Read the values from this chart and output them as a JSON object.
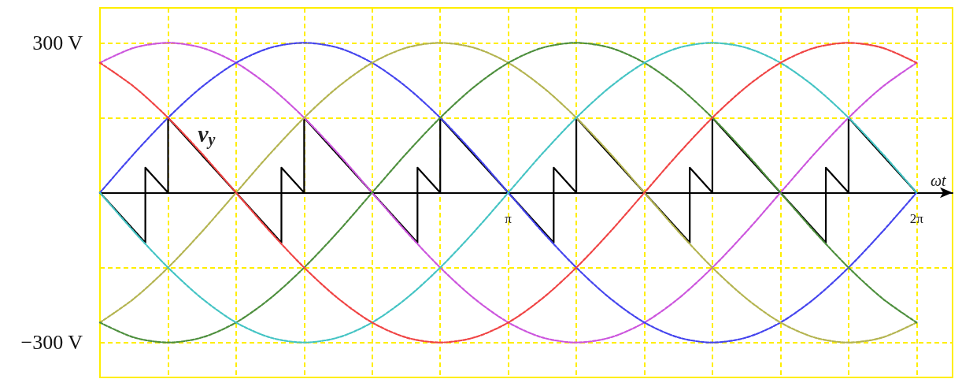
{
  "chart_data": {
    "type": "line",
    "xlabel": "ωt",
    "marker": "none",
    "grid": true,
    "xlim": [
      0,
      6.56
    ],
    "ylim": [
      -370,
      370
    ],
    "xticks": [
      {
        "value": 0,
        "label": null
      },
      {
        "value": 0.524,
        "label": null
      },
      {
        "value": 1.047,
        "label": null
      },
      {
        "value": 1.571,
        "label": null
      },
      {
        "value": 2.094,
        "label": null
      },
      {
        "value": 2.618,
        "label": null
      },
      {
        "value": 3.1416,
        "label": "π"
      },
      {
        "value": 3.665,
        "label": null
      },
      {
        "value": 4.189,
        "label": null
      },
      {
        "value": 4.712,
        "label": null
      },
      {
        "value": 5.236,
        "label": null
      },
      {
        "value": 5.76,
        "label": null
      },
      {
        "value": 6.2832,
        "label": "2π"
      }
    ],
    "yticks": [
      {
        "value": -300,
        "label": "−300 V"
      },
      {
        "value": -150,
        "label": null
      },
      {
        "value": 0,
        "label": null
      },
      {
        "value": 150,
        "label": null
      },
      {
        "value": 300,
        "label": "300 V"
      }
    ],
    "x": [
      0,
      0.262,
      0.524,
      0.785,
      1.047,
      1.309,
      1.571,
      1.833,
      2.094,
      2.356,
      2.618,
      2.88,
      3.142,
      3.403,
      3.665,
      3.927,
      4.189,
      4.451,
      4.712,
      4.974,
      5.236,
      5.498,
      5.76,
      6.021,
      6.283
    ],
    "annotations": [
      "v$_{y}$"
    ],
    "series": [
      {
        "color": "#cc55dd",
        "line_style": "dashed",
        "values": [
          260,
          290,
          300,
          290,
          260,
          212,
          150,
          78,
          0,
          -78,
          -150,
          -212,
          -260,
          -290,
          -300,
          -290,
          -260,
          -212,
          -150,
          -78,
          0,
          78,
          150,
          212,
          260
        ]
      },
      {
        "color": "#4444ee",
        "line_style": "dashed",
        "values": [
          0,
          78,
          150,
          212,
          260,
          290,
          300,
          290,
          260,
          212,
          150,
          78,
          0,
          -78,
          -150,
          -212,
          -260,
          -290,
          -300,
          -290,
          -260,
          -212,
          -150,
          -78,
          0
        ]
      },
      {
        "color": "#b4b450",
        "line_style": "dashed",
        "values": [
          -260,
          -212,
          -150,
          -78,
          0,
          78,
          150,
          212,
          260,
          290,
          300,
          290,
          260,
          212,
          150,
          78,
          0,
          -78,
          -150,
          -212,
          -260,
          -290,
          -300,
          -290,
          -260
        ]
      },
      {
        "color": "#4d8f3d",
        "line_style": "dashed",
        "values": [
          -260,
          -290,
          -300,
          -290,
          -260,
          -212,
          -150,
          -78,
          0,
          78,
          150,
          212,
          260,
          290,
          300,
          290,
          260,
          212,
          150,
          78,
          0,
          -78,
          -150,
          -212,
          -260
        ]
      },
      {
        "color": "#44c4c4",
        "line_style": "dashed",
        "values": [
          0,
          -78,
          -150,
          -212,
          -260,
          -290,
          -300,
          -290,
          -260,
          -212,
          -150,
          -78,
          0,
          78,
          150,
          212,
          260,
          290,
          300,
          290,
          260,
          212,
          150,
          78,
          0
        ]
      },
      {
        "color": "#f04444",
        "line_style": "dashed",
        "values": [
          260,
          212,
          150,
          78,
          0,
          -78,
          -150,
          -212,
          -260,
          -290,
          -300,
          -290,
          -260,
          -212,
          -150,
          -78,
          0,
          78,
          150,
          212,
          260,
          290,
          300,
          290,
          260
        ]
      },
      {
        "color": "#000000",
        "line_style": "solid",
        "x": [
          0,
          0.349,
          0.349,
          0.524,
          0.524,
          1.396,
          1.396,
          1.571,
          1.571,
          2.443,
          2.443,
          2.618,
          2.618,
          3.491,
          3.491,
          3.665,
          3.665,
          4.538,
          4.538,
          4.712,
          4.712,
          5.585,
          5.585,
          5.76,
          5.76,
          6.283
        ],
        "values": [
          0,
          -100,
          50,
          0,
          150,
          -100,
          50,
          0,
          150,
          -100,
          50,
          0,
          150,
          -100,
          50,
          0,
          150,
          -100,
          50,
          0,
          150,
          -100,
          50,
          0,
          150,
          0
        ]
      }
    ]
  }
}
